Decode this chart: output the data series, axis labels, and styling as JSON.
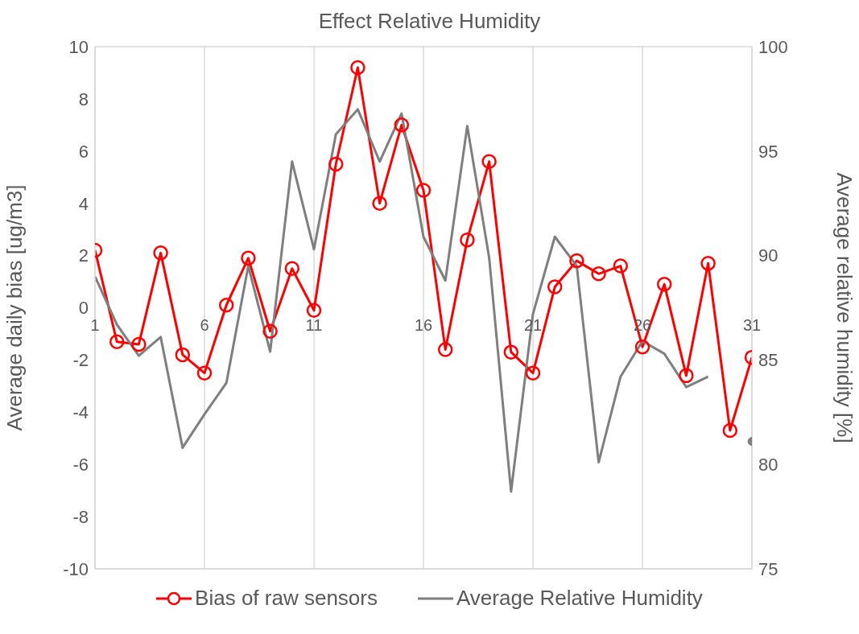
{
  "chart_data": {
    "type": "line",
    "title": "Effect Relative Humidity",
    "xlabel": null,
    "ylabel": "Average daily bias [ug/m3]",
    "y2label": "Average relative humidity [%]",
    "x": [
      1,
      2,
      3,
      4,
      5,
      6,
      7,
      8,
      9,
      10,
      11,
      12,
      13,
      14,
      15,
      16,
      17,
      18,
      19,
      20,
      21,
      22,
      23,
      24,
      25,
      26,
      27,
      28,
      29,
      30,
      31
    ],
    "series": [
      {
        "name": "Bias of raw sensors",
        "color": "#ff0000",
        "marker": "circle",
        "values": [
          2.2,
          -1.3,
          -1.4,
          2.1,
          -1.8,
          -2.5,
          0.1,
          1.9,
          -0.9,
          1.5,
          -0.1,
          5.5,
          9.2,
          4.0,
          7.0,
          4.5,
          -1.6,
          2.6,
          5.6,
          -1.7,
          -2.5,
          0.8,
          1.8,
          1.3,
          1.6,
          -1.5,
          0.9,
          -2.6,
          1.7,
          -4.7,
          -1.9
        ]
      },
      {
        "name": "Average Relative Humidity",
        "color": "#7f7f7f",
        "marker": "none",
        "axis": "y2",
        "values": [
          89.0,
          86.7,
          85.2,
          86.1,
          80.8,
          82.4,
          83.9,
          89.5,
          85.4,
          94.5,
          90.3,
          95.8,
          97.0,
          94.5,
          96.8,
          90.9,
          88.8,
          96.2,
          89.9,
          78.7,
          87.2,
          90.9,
          89.5,
          80.1,
          84.2,
          85.9,
          85.3,
          83.7,
          84.2,
          null,
          81.1
        ]
      }
    ],
    "xlim": [
      1,
      31
    ],
    "xticks": [
      1,
      6,
      11,
      16,
      21,
      26,
      31
    ],
    "ylim": [
      -10,
      10
    ],
    "yticks": [
      -10,
      -8,
      -6,
      -4,
      -2,
      0,
      2,
      4,
      6,
      8,
      10
    ],
    "y2lim": [
      75,
      100
    ],
    "y2ticks": [
      75,
      80,
      85,
      90,
      95,
      100
    ],
    "grid": true,
    "legend": "bottom",
    "line_style": "solid"
  }
}
